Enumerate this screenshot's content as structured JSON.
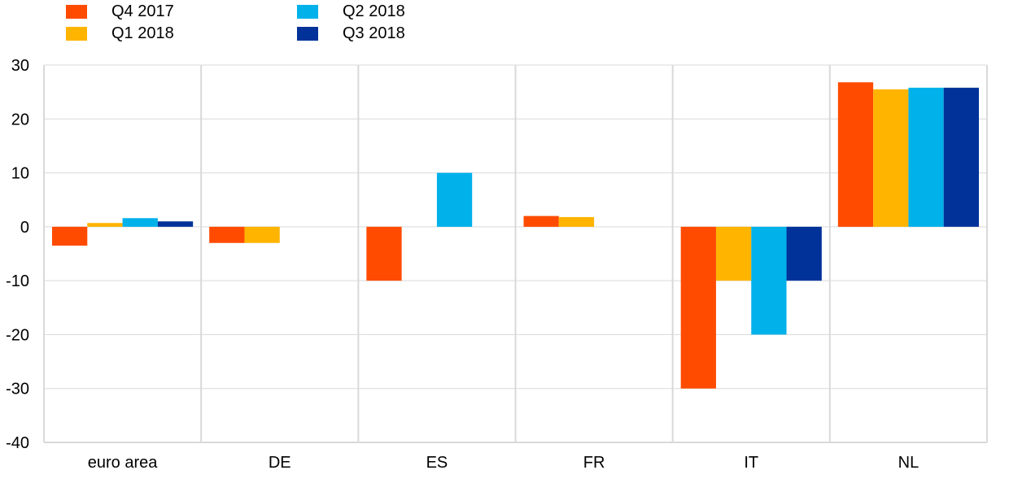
{
  "chart_data": {
    "type": "bar",
    "categories": [
      "euro area",
      "DE",
      "ES",
      "FR",
      "IT",
      "NL"
    ],
    "series": [
      {
        "name": "Q4 2017",
        "color": "#FF4B00",
        "values": [
          -3.5,
          -3.0,
          -10.0,
          2.0,
          -30.0,
          26.8
        ]
      },
      {
        "name": "Q1 2018",
        "color": "#FFB400",
        "values": [
          0.7,
          -3.0,
          0.0,
          1.8,
          -10.0,
          25.5
        ]
      },
      {
        "name": "Q2 2018",
        "color": "#00B1EA",
        "values": [
          1.6,
          0.0,
          10.0,
          0.0,
          -20.0,
          25.8
        ]
      },
      {
        "name": "Q3 2018",
        "color": "#003299",
        "values": [
          1.0,
          0.0,
          0.0,
          0.0,
          -10.0,
          25.8
        ]
      }
    ],
    "ylim": [
      -40,
      30
    ],
    "yticks": [
      30,
      20,
      10,
      0,
      -10,
      -20,
      -30,
      -40
    ],
    "ytick_labels": [
      "30",
      "20",
      "10",
      "0",
      "-10",
      "-20",
      "-30",
      "-40"
    ],
    "grid": true,
    "legend_position": "top-left",
    "title": "",
    "xlabel": "",
    "ylabel": ""
  }
}
